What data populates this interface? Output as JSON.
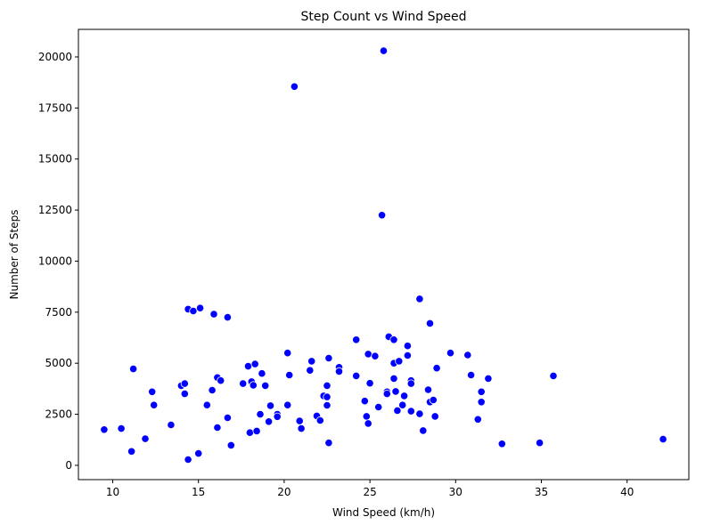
{
  "chart_data": {
    "type": "scatter",
    "title": "Step Count vs Wind Speed",
    "xlabel": "Wind Speed (km/h)",
    "ylabel": "Number of Steps",
    "xlim": [
      8.0,
      43.6
    ],
    "ylim": [
      -700,
      21350
    ],
    "xticks": [
      10,
      15,
      20,
      25,
      30,
      35,
      40
    ],
    "yticks": [
      0,
      2500,
      5000,
      7500,
      10000,
      12500,
      15000,
      17500,
      20000
    ],
    "grid": false,
    "legend": "none",
    "color": "#0000ff",
    "points": [
      [
        9.5,
        1750
      ],
      [
        10.5,
        1800
      ],
      [
        11.1,
        680
      ],
      [
        11.2,
        4720
      ],
      [
        11.9,
        1300
      ],
      [
        12.3,
        3600
      ],
      [
        12.4,
        2950
      ],
      [
        13.4,
        1980
      ],
      [
        14.0,
        3900
      ],
      [
        14.2,
        4000
      ],
      [
        14.2,
        3500
      ],
      [
        14.4,
        280
      ],
      [
        14.4,
        7650
      ],
      [
        14.7,
        7560
      ],
      [
        15.0,
        580
      ],
      [
        15.1,
        7700
      ],
      [
        15.5,
        2950
      ],
      [
        15.8,
        3680
      ],
      [
        15.9,
        7400
      ],
      [
        16.1,
        1850
      ],
      [
        16.1,
        4300
      ],
      [
        16.3,
        4150
      ],
      [
        16.7,
        2330
      ],
      [
        16.7,
        7250
      ],
      [
        16.9,
        980
      ],
      [
        17.6,
        4000
      ],
      [
        17.9,
        4850
      ],
      [
        18.0,
        1600
      ],
      [
        18.1,
        4100
      ],
      [
        18.2,
        3920
      ],
      [
        18.3,
        4960
      ],
      [
        18.4,
        1680
      ],
      [
        18.6,
        2500
      ],
      [
        18.7,
        4500
      ],
      [
        18.9,
        3900
      ],
      [
        19.1,
        2140
      ],
      [
        19.2,
        2920
      ],
      [
        19.6,
        2500
      ],
      [
        19.6,
        2380
      ],
      [
        20.2,
        2950
      ],
      [
        20.2,
        5500
      ],
      [
        20.3,
        4420
      ],
      [
        20.6,
        18550
      ],
      [
        20.9,
        2170
      ],
      [
        21.0,
        1800
      ],
      [
        21.5,
        4650
      ],
      [
        21.6,
        5100
      ],
      [
        21.9,
        2420
      ],
      [
        22.1,
        2200
      ],
      [
        22.3,
        3400
      ],
      [
        22.5,
        2940
      ],
      [
        22.5,
        3900
      ],
      [
        22.5,
        3350
      ],
      [
        22.6,
        5250
      ],
      [
        22.6,
        1100
      ],
      [
        23.2,
        4800
      ],
      [
        23.2,
        4600
      ],
      [
        24.2,
        6150
      ],
      [
        24.2,
        4380
      ],
      [
        24.7,
        3150
      ],
      [
        24.8,
        2400
      ],
      [
        24.9,
        2050
      ],
      [
        24.9,
        5450
      ],
      [
        25.0,
        4020
      ],
      [
        25.3,
        5350
      ],
      [
        25.5,
        2850
      ],
      [
        25.7,
        12250
      ],
      [
        25.8,
        20300
      ],
      [
        26.0,
        3600
      ],
      [
        26.0,
        3500
      ],
      [
        26.1,
        6300
      ],
      [
        26.4,
        6150
      ],
      [
        26.4,
        5000
      ],
      [
        26.4,
        4250
      ],
      [
        26.5,
        3620
      ],
      [
        26.6,
        2680
      ],
      [
        26.7,
        5100
      ],
      [
        26.9,
        2950
      ],
      [
        27.0,
        3400
      ],
      [
        27.2,
        5850
      ],
      [
        27.2,
        5380
      ],
      [
        27.4,
        4150
      ],
      [
        27.4,
        4000
      ],
      [
        27.4,
        2650
      ],
      [
        27.9,
        8150
      ],
      [
        27.9,
        2520
      ],
      [
        28.1,
        1700
      ],
      [
        28.4,
        3700
      ],
      [
        28.5,
        6950
      ],
      [
        28.5,
        3100
      ],
      [
        28.7,
        3200
      ],
      [
        28.8,
        2400
      ],
      [
        28.9,
        4760
      ],
      [
        29.7,
        5500
      ],
      [
        30.7,
        5400
      ],
      [
        30.9,
        4420
      ],
      [
        31.3,
        2250
      ],
      [
        31.5,
        3600
      ],
      [
        31.5,
        3100
      ],
      [
        31.9,
        4250
      ],
      [
        32.7,
        1050
      ],
      [
        34.9,
        1100
      ],
      [
        35.7,
        4380
      ],
      [
        42.1,
        1280
      ]
    ]
  }
}
